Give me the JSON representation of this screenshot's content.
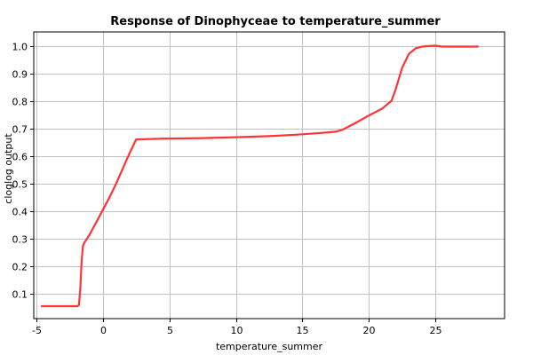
{
  "chart_data": {
    "type": "line",
    "title": "Response of Dinophyceae to temperature_summer",
    "xlabel": "temperature_summer",
    "ylabel": "cloglog output",
    "xlim": [
      -5.2,
      30.2
    ],
    "ylim": [
      0.01,
      1.05
    ],
    "x_ticks": [
      -5,
      0,
      5,
      10,
      15,
      20,
      25
    ],
    "y_ticks": [
      0.1,
      0.2,
      0.3,
      0.4,
      0.5,
      0.6,
      0.7,
      0.8,
      0.9,
      1.0
    ],
    "x_tick_labels": [
      "-5",
      "0",
      "5",
      "10",
      "15",
      "20",
      "25"
    ],
    "y_tick_labels": [
      "0.1",
      "0.2",
      "0.3",
      "0.4",
      "0.5",
      "0.6",
      "0.7",
      "0.8",
      "0.9",
      "1.0"
    ],
    "grid": true,
    "line_color": "#ff3333",
    "series": [
      {
        "x": [
          -4.6,
          -1.9,
          -1.8,
          -1.7,
          -1.6,
          -1.5,
          -1.4,
          -1.0,
          -0.5,
          0,
          0.5,
          1.0,
          1.5,
          2.0,
          2.5,
          4.5,
          7.5,
          10.0,
          12.5,
          14.5,
          16.5,
          17.5,
          18.0,
          19.0,
          20.0,
          21.0,
          21.7,
          22.0,
          22.5,
          23.0,
          23.5,
          24.0,
          24.5,
          25.0,
          25.5,
          28.2
        ],
        "y": [
          0.055,
          0.055,
          0.06,
          0.12,
          0.22,
          0.275,
          0.285,
          0.315,
          0.36,
          0.405,
          0.45,
          0.5,
          0.555,
          0.61,
          0.66,
          0.663,
          0.665,
          0.668,
          0.672,
          0.677,
          0.684,
          0.688,
          0.695,
          0.72,
          0.747,
          0.772,
          0.8,
          0.84,
          0.92,
          0.97,
          0.99,
          0.997,
          0.999,
          1.0,
          0.997,
          0.997
        ]
      }
    ]
  }
}
